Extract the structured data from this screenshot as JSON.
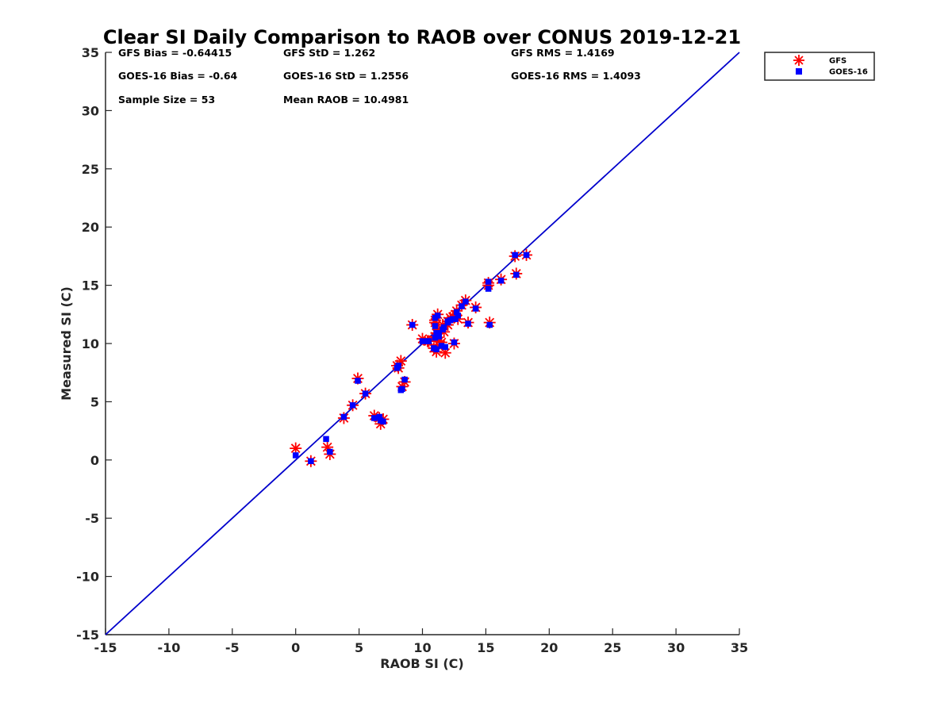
{
  "chart_data": {
    "type": "scatter",
    "title": "Clear SI Daily Comparison to RAOB over CONUS 2019-12-21",
    "xlabel": "RAOB SI (C)",
    "ylabel": "Measured SI (C)",
    "xlim": [
      -15,
      35
    ],
    "ylim": [
      -15,
      35
    ],
    "xticks": [
      "-15",
      "-10",
      "-5",
      "0",
      "5",
      "10",
      "15",
      "20",
      "25",
      "30",
      "35"
    ],
    "yticks": [
      "-15",
      "-10",
      "-5",
      "0",
      "5",
      "10",
      "15",
      "20",
      "25",
      "30",
      "35"
    ],
    "grid": false,
    "legend_position": "outside-top-right",
    "reference_line": {
      "x": [
        -15,
        35
      ],
      "y": [
        -15,
        35
      ],
      "color": "#0000cc"
    },
    "stats": [
      [
        "GFS Bias = -0.64415",
        "GFS StD = 1.262",
        "GFS RMS = 1.4169"
      ],
      [
        "GOES-16 Bias = -0.64",
        "GOES-16 StD = 1.2556",
        "GOES-16 RMS = 1.4093"
      ],
      [
        "Sample Size = 53",
        "Mean RAOB = 10.4981",
        ""
      ]
    ],
    "series": [
      {
        "name": "GFS",
        "marker": "asterisk",
        "color": "#ff0000",
        "x": [
          0.0,
          1.2,
          2.5,
          2.7,
          3.8,
          4.5,
          4.9,
          5.5,
          6.2,
          6.6,
          6.7,
          6.9,
          8.0,
          8.1,
          8.3,
          8.4,
          8.6,
          9.2,
          10.0,
          10.4,
          10.9,
          11.0,
          11.0,
          11.1,
          11.1,
          11.2,
          11.3,
          11.5,
          11.7,
          11.8,
          12.0,
          12.2,
          12.5,
          12.6,
          12.7,
          12.8,
          13.1,
          13.4,
          13.6,
          14.2,
          15.2,
          15.2,
          15.3,
          16.2,
          17.3,
          17.4,
          18.2,
          11.0,
          10.5,
          11.6,
          12.4,
          12.0,
          11.3
        ],
        "y": [
          1.0,
          -0.1,
          1.1,
          0.5,
          3.6,
          4.7,
          7.0,
          5.7,
          3.8,
          3.6,
          3.1,
          3.5,
          8.1,
          7.9,
          8.5,
          6.3,
          6.7,
          11.6,
          10.4,
          10.2,
          9.6,
          11.8,
          12.0,
          10.9,
          9.3,
          12.5,
          10.2,
          10.1,
          11.0,
          9.2,
          11.9,
          12.2,
          10.0,
          12.5,
          12.8,
          12.1,
          13.3,
          13.7,
          11.8,
          13.1,
          15.2,
          15.0,
          11.8,
          15.5,
          17.5,
          16.0,
          17.6,
          10.6,
          10.2,
          11.6,
          12.3,
          11.6,
          11.2
        ]
      },
      {
        "name": "GOES-16",
        "marker": "square",
        "color": "#0000ff",
        "x": [
          0.0,
          1.2,
          2.4,
          2.7,
          3.8,
          4.5,
          4.9,
          5.5,
          6.2,
          6.6,
          6.7,
          6.9,
          8.0,
          8.1,
          8.3,
          8.4,
          8.6,
          9.2,
          10.0,
          10.4,
          10.9,
          11.0,
          11.0,
          11.1,
          11.1,
          11.2,
          11.3,
          11.5,
          11.7,
          11.8,
          12.0,
          12.2,
          12.5,
          12.6,
          12.7,
          12.8,
          13.1,
          13.4,
          13.6,
          14.2,
          15.2,
          15.2,
          15.3,
          16.2,
          17.3,
          17.4,
          18.2,
          11.0,
          10.5,
          11.6,
          12.4,
          12.0,
          11.3
        ],
        "y": [
          0.4,
          -0.1,
          1.8,
          0.7,
          3.7,
          4.7,
          6.8,
          5.7,
          3.6,
          3.7,
          3.4,
          3.3,
          7.9,
          8.1,
          6.0,
          6.1,
          6.9,
          11.6,
          10.2,
          10.2,
          9.6,
          11.5,
          12.2,
          10.9,
          9.5,
          12.4,
          10.6,
          9.8,
          11.4,
          9.7,
          11.8,
          12.0,
          10.1,
          12.1,
          12.7,
          12.4,
          13.2,
          13.6,
          11.7,
          13.0,
          15.3,
          14.7,
          11.6,
          15.4,
          17.6,
          15.9,
          17.6,
          10.5,
          10.2,
          11.2,
          12.1,
          11.9,
          10.9
        ]
      }
    ]
  }
}
